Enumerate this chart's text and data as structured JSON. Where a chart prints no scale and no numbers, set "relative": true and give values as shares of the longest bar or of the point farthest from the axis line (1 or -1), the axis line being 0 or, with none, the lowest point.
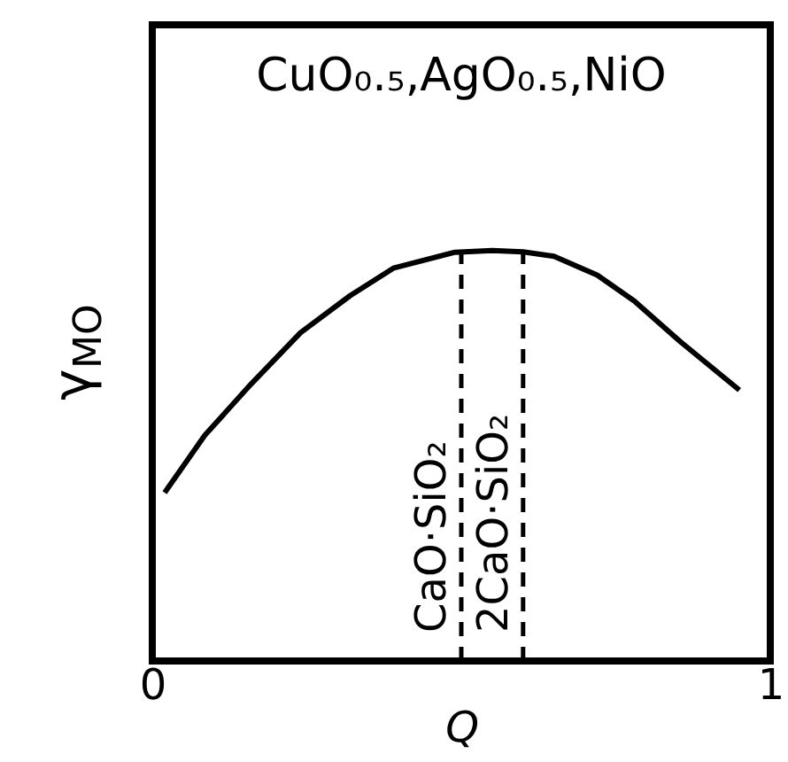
{
  "chart_data": {
    "type": "line",
    "relative": true,
    "xlabel": "Q",
    "ylabel": "γ$_{MO}$",
    "annotations": [
      "CuO₀.₅,AgO₀.₅,NiO"
    ],
    "xlim": [
      0,
      1
    ],
    "xticks": [
      0,
      1
    ],
    "x": [
      0.02,
      0.085,
      0.16,
      0.24,
      0.32,
      0.39,
      0.49,
      0.55,
      0.6,
      0.65,
      0.72,
      0.78,
      0.856,
      0.95
    ],
    "series": [
      {
        "color": "#000000",
        "values": [
          0.41,
          0.55,
          0.675,
          0.8,
          0.89,
          0.957,
          0.996,
          1.0,
          0.997,
          0.986,
          0.94,
          0.877,
          0.776,
          0.66
        ]
      }
    ],
    "ref_lines": [
      {
        "axis": "x",
        "value": 0.5,
        "label": "CaO·SiO₂",
        "line_style": "dashed"
      },
      {
        "axis": "x",
        "value": 0.6,
        "label": "2CaO·SiO₂",
        "line_style": "dashed"
      }
    ],
    "grid": false,
    "marker": "none",
    "line_style": "solid"
  }
}
